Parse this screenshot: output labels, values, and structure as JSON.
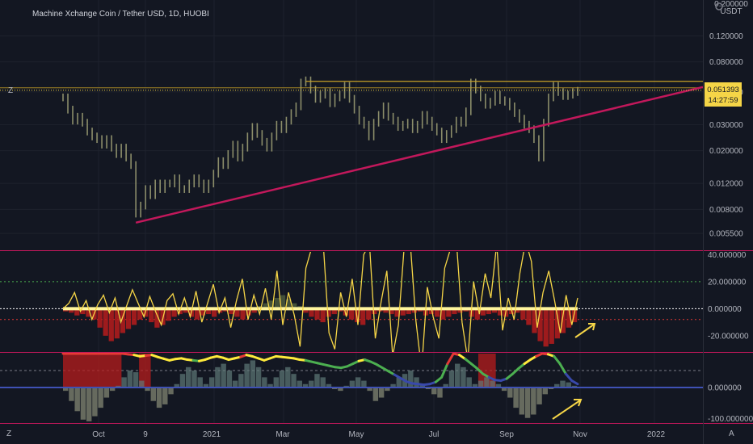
{
  "header": {
    "title": "Machine Xchange Coin / Tether USD, 1D, HUOBI"
  },
  "currency_label": "USDT",
  "current_price": {
    "value": "0.051393",
    "countdown": "14:27:59"
  },
  "colors": {
    "background": "#131722",
    "price_bars": "#8c8e6a",
    "trendline": "#c2185b",
    "resistance": "#c9a227",
    "oscillator": "#f5d547",
    "histogram_negative": "#b71c1c",
    "histogram_positive": "#4e5a3c",
    "wave_line_green": "#4caf50",
    "wave_line_yellow": "#ffeb3b",
    "wave_line_red": "#e53935",
    "zero_line_blue": "#3f51b5",
    "annotation_arrow": "#f5d547"
  },
  "icons": {
    "bottom_left": "Z",
    "bottom_right": "A",
    "gear": "gear-icon"
  },
  "chart_data": [
    {
      "type": "line",
      "panel": "price",
      "yscale": "log",
      "ylim": [
        0.0045,
        0.21
      ],
      "y_ticks": [
        "0.200000",
        "0.120000",
        "0.080000",
        "0.050000",
        "0.030000",
        "0.020000",
        "0.012000",
        "0.008000",
        "0.005500"
      ],
      "x_ticks": [
        "Oct",
        "9",
        "2021",
        "Mar",
        "May",
        "Jul",
        "Sep",
        "Nov",
        "2022"
      ],
      "series": [
        {
          "values": [
            0.046,
            0.038,
            0.032,
            0.034,
            0.031,
            0.027,
            0.025,
            0.024,
            0.022,
            0.024,
            0.021,
            0.019,
            0.021,
            0.018,
            0.016,
            0.0075,
            0.0085,
            0.011,
            0.01,
            0.012,
            0.011,
            0.012,
            0.012,
            0.013,
            0.011,
            0.011,
            0.012,
            0.013,
            0.012,
            0.011,
            0.012,
            0.014,
            0.017,
            0.016,
            0.019,
            0.022,
            0.018,
            0.021,
            0.025,
            0.029,
            0.026,
            0.023,
            0.021,
            0.025,
            0.03,
            0.028,
            0.032,
            0.036,
            0.04,
            0.058,
            0.06,
            0.052,
            0.045,
            0.048,
            0.05,
            0.042,
            0.046,
            0.048,
            0.055,
            0.045,
            0.038,
            0.032,
            0.03,
            0.025,
            0.031,
            0.035,
            0.04,
            0.034,
            0.032,
            0.029,
            0.03,
            0.031,
            0.028,
            0.03,
            0.035,
            0.032,
            0.029,
            0.027,
            0.024,
            0.026,
            0.028,
            0.032,
            0.031,
            0.037,
            0.058,
            0.052,
            0.046,
            0.041,
            0.043,
            0.048,
            0.044,
            0.043,
            0.04,
            0.036,
            0.033,
            0.03,
            0.028,
            0.024,
            0.018,
            0.031,
            0.046,
            0.055,
            0.05,
            0.047,
            0.048,
            0.05,
            0.051
          ]
        }
      ],
      "annotations": {
        "trendline": {
          "from": {
            "x_index": 15,
            "y": 0.0065
          },
          "to": {
            "x_index": 112,
            "y": 0.054
          }
        },
        "resistance": {
          "from_x_index": 50,
          "to_x_index": 112,
          "y": 0.059
        },
        "price_line": {
          "y": 0.051393
        }
      }
    },
    {
      "type": "bar",
      "panel": "oscillator_1",
      "ylim": [
        -32,
        42
      ],
      "y_ticks": [
        "40.000000",
        "20.000000",
        "0.000000",
        "-20.000000"
      ],
      "guide_levels": [
        20,
        0,
        -8
      ],
      "series": [
        {
          "name": "",
          "kind": "line",
          "values": [
            0,
            4,
            12,
            -2,
            6,
            -8,
            3,
            10,
            -3,
            8,
            -10,
            2,
            14,
            4,
            -6,
            9,
            -2,
            -12,
            6,
            11,
            -4,
            8,
            -6,
            13,
            -10,
            4,
            18,
            -3,
            8,
            -14,
            6,
            22,
            -8,
            10,
            -4,
            15,
            -8,
            28,
            -12,
            12,
            -5,
            -28,
            30,
            45,
            55,
            48,
            -18,
            -30,
            12,
            -6,
            22,
            -12,
            40,
            48,
            -22,
            5,
            28,
            -35,
            -12,
            46,
            52,
            -8,
            -45,
            16,
            -6,
            -22,
            30,
            44,
            52,
            -10,
            -38,
            20,
            -4,
            26,
            8,
            48,
            -16,
            8,
            -8,
            26,
            50,
            35,
            -14,
            12,
            28,
            6,
            -18,
            10,
            -12,
            8
          ]
        },
        {
          "name": "",
          "kind": "histogram",
          "values": [
            -2,
            -3,
            -5,
            -4,
            -6,
            -8,
            -14,
            -20,
            -24,
            -22,
            -18,
            -15,
            -12,
            -8,
            -6,
            -10,
            -14,
            -12,
            -9,
            -6,
            -4,
            -3,
            -6,
            -8,
            -5,
            -4,
            -6,
            -3,
            -2,
            -4,
            -6,
            -8,
            -5,
            -3,
            2,
            4,
            6,
            8,
            10,
            7,
            4,
            2,
            -3,
            -6,
            -8,
            -10,
            -6,
            -4,
            -2,
            -5,
            -8,
            -10,
            -12,
            -8,
            -4,
            -2,
            -3,
            -4,
            -6,
            -5,
            -4,
            -3,
            -2,
            -5,
            -4,
            -6,
            -8,
            -6,
            -4,
            -3,
            -2,
            -6,
            -8,
            -5,
            -4,
            -3,
            -5,
            -6,
            -4,
            -3,
            -8,
            -12,
            -18,
            -24,
            -28,
            -26,
            -22,
            -18,
            -14,
            -10
          ]
        }
      ]
    },
    {
      "type": "bar",
      "panel": "oscillator_2",
      "ylim": [
        -105,
        100
      ],
      "y_ticks": [
        "0.000000",
        "-100.000000"
      ],
      "guide_levels": [
        50,
        0
      ],
      "series": [
        {
          "name": "",
          "kind": "wave_line",
          "values": [
            100,
            100,
            100,
            100,
            100,
            100,
            100,
            100,
            100,
            100,
            100,
            98,
            96,
            92,
            94,
            96,
            90,
            85,
            80,
            84,
            86,
            82,
            80,
            78,
            82,
            88,
            92,
            88,
            82,
            86,
            90,
            96,
            92,
            86,
            80,
            86,
            92,
            90,
            88,
            86,
            82,
            80,
            76,
            72,
            68,
            64,
            60,
            58,
            62,
            70,
            78,
            82,
            76,
            68,
            58,
            48,
            38,
            28,
            18,
            12,
            10,
            8,
            10,
            16,
            30,
            70,
            100,
            96,
            84,
            70,
            56,
            40,
            30,
            22,
            20,
            26,
            40,
            56,
            70,
            82,
            92,
            100,
            98,
            92,
            70,
            40,
            20,
            10
          ]
        },
        {
          "name": "",
          "kind": "histogram",
          "values": [
            -10,
            -40,
            -70,
            -95,
            -100,
            -85,
            -60,
            -30,
            -10,
            5,
            30,
            50,
            45,
            20,
            -10,
            -40,
            -60,
            -50,
            -20,
            10,
            40,
            60,
            50,
            30,
            10,
            30,
            60,
            70,
            50,
            20,
            40,
            70,
            80,
            60,
            30,
            10,
            30,
            50,
            60,
            40,
            20,
            10,
            20,
            40,
            30,
            10,
            -5,
            -10,
            5,
            20,
            30,
            20,
            -10,
            -40,
            -30,
            -10,
            10,
            30,
            40,
            50,
            30,
            10,
            -5,
            -20,
            -30,
            10,
            50,
            70,
            60,
            30,
            10,
            20,
            30,
            20,
            10,
            -10,
            -30,
            -60,
            -80,
            -90,
            -80,
            -50,
            -20,
            -5,
            10,
            20,
            15,
            5
          ]
        }
      ],
      "regions": [
        {
          "from_index": 0,
          "to_index": 10,
          "color": "#b71c1c"
        },
        {
          "from_index": 13,
          "to_index": 15,
          "color": "#b71c1c"
        },
        {
          "from_index": 71,
          "to_index": 74,
          "color": "#b71c1c"
        }
      ]
    }
  ]
}
